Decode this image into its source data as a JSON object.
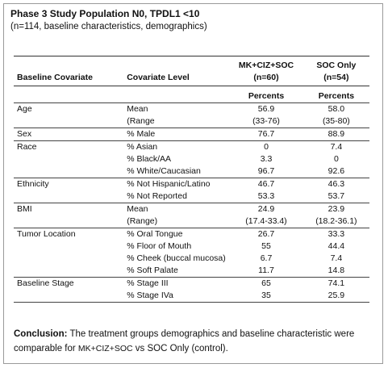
{
  "title": "Phase 3 Study Population N0, TPDL1 <10",
  "subtitle": "(n=114, baseline characteristics, demographics)",
  "table": {
    "headers": {
      "covariate": "Baseline Covariate",
      "level": "Covariate Level",
      "arm1_line1": "MK+CIZ+SOC",
      "arm1_line2": "(n=60)",
      "arm2_line1": "SOC Only",
      "arm2_line2": "(n=54)"
    },
    "subheader": {
      "arm1": "Percents",
      "arm2": "Percents"
    },
    "groups": [
      {
        "name": "Age",
        "rows": [
          {
            "level": "Mean",
            "a": "56.9",
            "b": "58.0"
          },
          {
            "level": "(Range",
            "a": "(33-76)",
            "b": "(35-80)"
          }
        ]
      },
      {
        "name": "Sex",
        "rows": [
          {
            "level": "% Male",
            "a": "76.7",
            "b": "88.9"
          }
        ]
      },
      {
        "name": "Race",
        "rows": [
          {
            "level": "% Asian",
            "a": "0",
            "b": "7.4"
          },
          {
            "level": "% Black/AA",
            "a": "3.3",
            "b": "0"
          },
          {
            "level": "% White/Caucasian",
            "a": "96.7",
            "b": "92.6"
          }
        ]
      },
      {
        "name": "Ethnicity",
        "rows": [
          {
            "level": "% Not Hispanic/Latino",
            "a": "46.7",
            "b": "46.3"
          },
          {
            "level": "% Not Reported",
            "a": "53.3",
            "b": "53.7"
          }
        ]
      },
      {
        "name": "BMI",
        "rows": [
          {
            "level": "Mean",
            "a": "24.9",
            "b": "23.9"
          },
          {
            "level": "(Range)",
            "a": "(17.4-33.4)",
            "b": "(18.2-36.1)"
          }
        ]
      },
      {
        "name": "Tumor Location",
        "rows": [
          {
            "level": "% Oral Tongue",
            "a": "26.7",
            "b": "33.3"
          },
          {
            "level": "% Floor of Mouth",
            "a": "55",
            "b": "44.4"
          },
          {
            "level": "% Cheek (buccal mucosa)",
            "a": "6.7",
            "b": "7.4"
          },
          {
            "level": "% Soft Palate",
            "a": "11.7",
            "b": "14.8"
          }
        ]
      },
      {
        "name": "Baseline Stage",
        "rows": [
          {
            "level": "% Stage III",
            "a": "65",
            "b": "74.1"
          },
          {
            "level": "% Stage IVa",
            "a": "35",
            "b": "25.9"
          }
        ]
      }
    ]
  },
  "conclusion": {
    "label": "Conclusion:",
    "text1": " The treatment groups demographics and baseline characteristic were comparable for ",
    "arm1": "MK+CIZ+SOC",
    "text2": " vs SOC Only (control)."
  }
}
